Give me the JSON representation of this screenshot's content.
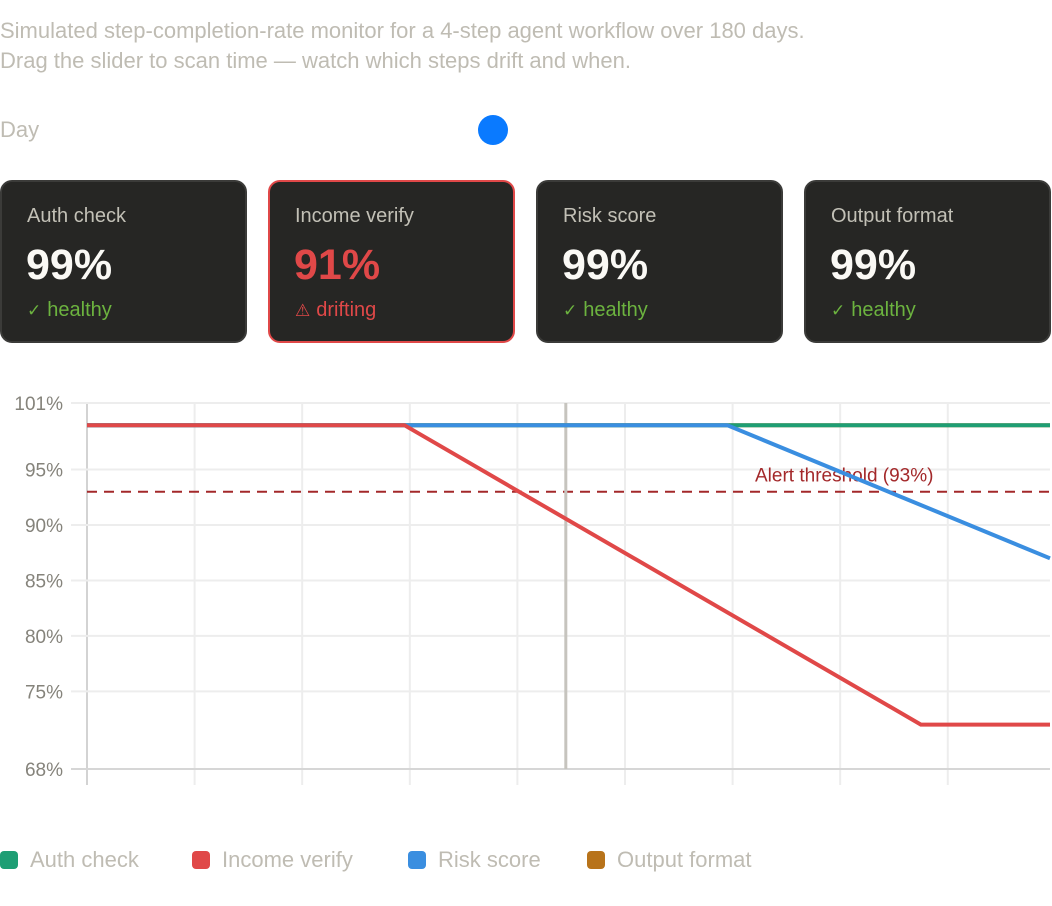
{
  "intro": {
    "line1": "Simulated step-completion-rate monitor for a 4-step agent workflow over 180 days.",
    "line2": "Drag the slider to scan time — watch which steps drift and when."
  },
  "slider": {
    "label": "Day",
    "min": 0,
    "max": 179,
    "value": 89,
    "thumb_color": "#0a7aff"
  },
  "cards": [
    {
      "label": "Auth check",
      "value": "99%",
      "status": "healthy",
      "status_icon": "check-icon",
      "status_glyph": "✓",
      "alert": false
    },
    {
      "label": "Income verify",
      "value": "91%",
      "status": "drifting",
      "status_icon": "warning-icon",
      "status_glyph": "⚠︎",
      "alert": true
    },
    {
      "label": "Risk score",
      "value": "99%",
      "status": "healthy",
      "status_icon": "check-icon",
      "status_glyph": "✓",
      "alert": false
    },
    {
      "label": "Output format",
      "value": "99%",
      "status": "healthy",
      "status_icon": "check-icon",
      "status_glyph": "✓",
      "alert": false
    }
  ],
  "colors": {
    "healthy": "#6cb33f",
    "alert": "#e04848",
    "card_bg": "#262624"
  },
  "chart_data": {
    "type": "line",
    "title": "",
    "xlabel": "",
    "ylabel": "",
    "xlim": [
      0,
      179
    ],
    "ylim": [
      68,
      101
    ],
    "yticks": [
      101,
      95,
      90,
      85,
      80,
      75,
      68
    ],
    "ytick_labels": [
      "101%",
      "95%",
      "90%",
      "85%",
      "80%",
      "75%",
      "68%"
    ],
    "x_gridlines": [
      0,
      20,
      40,
      60,
      80,
      100,
      120,
      140,
      160
    ],
    "grid": true,
    "cursor_day": 89,
    "threshold": {
      "value": 93,
      "label": "Alert threshold (93%)",
      "color": "#a3282a"
    },
    "legend_position": "bottom-left",
    "series": [
      {
        "name": "Auth check",
        "color": "#1e9e74",
        "points": [
          [
            0,
            99
          ],
          [
            179,
            99
          ]
        ]
      },
      {
        "name": "Income verify",
        "color": "#e04848",
        "points": [
          [
            0,
            99
          ],
          [
            59,
            99
          ],
          [
            155,
            72
          ],
          [
            179,
            72
          ]
        ]
      },
      {
        "name": "Risk score",
        "color": "#3a8ee0",
        "points": [
          [
            0,
            99
          ],
          [
            119,
            99
          ],
          [
            179,
            87
          ]
        ]
      },
      {
        "name": "Output format",
        "color": "#b8731a",
        "points": [
          [
            0,
            99
          ],
          [
            179,
            99
          ]
        ]
      }
    ]
  }
}
